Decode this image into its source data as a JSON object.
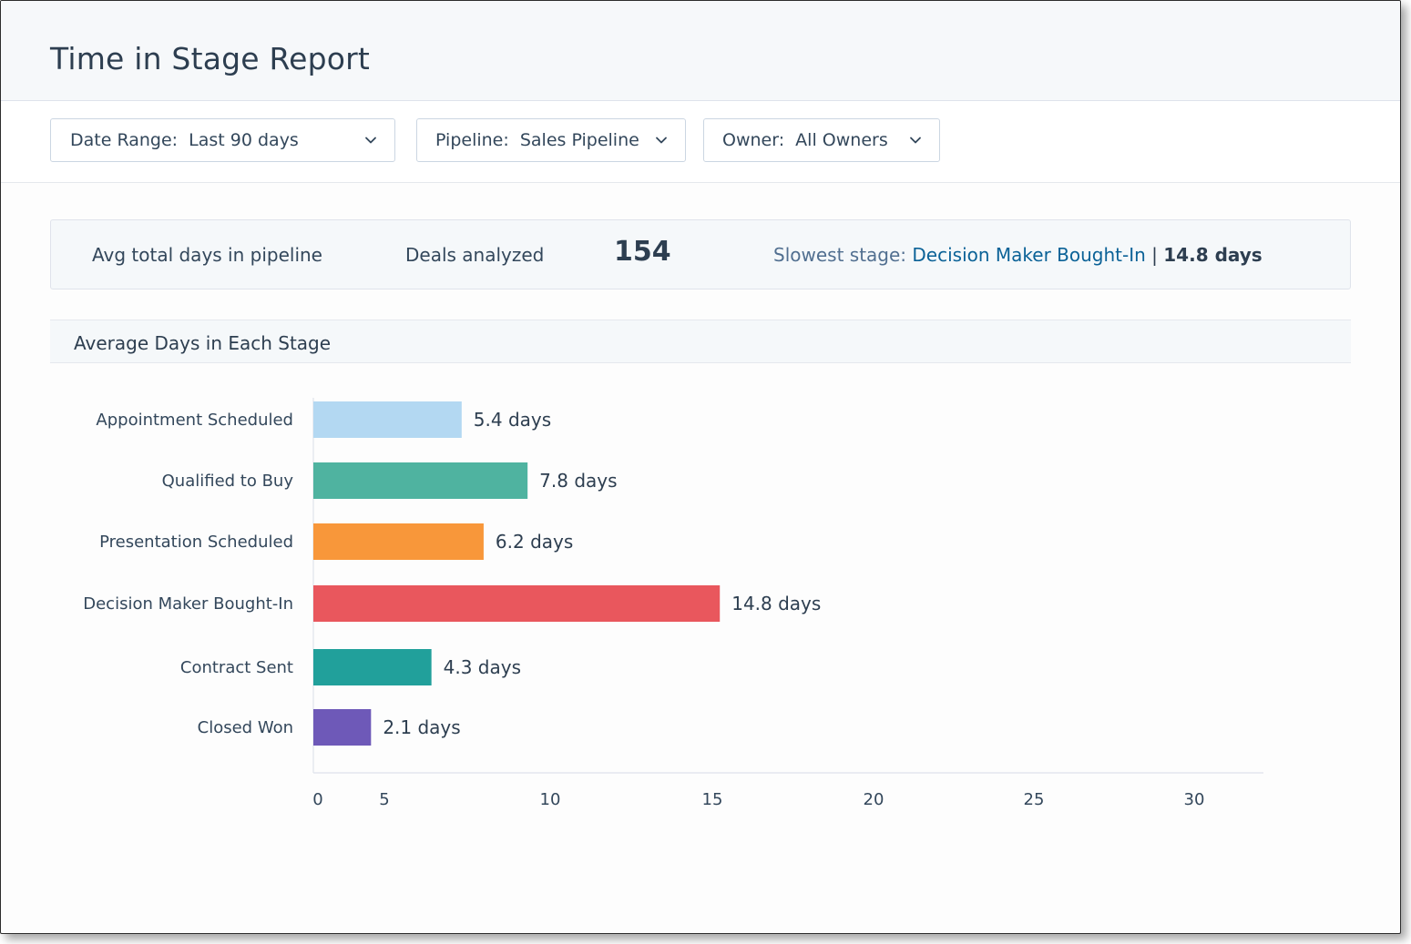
{
  "header": {
    "title": "Time in Stage Report"
  },
  "filters": [
    {
      "label": "Date Range:  Last 90 days",
      "icon": "chevron-down-icon"
    },
    {
      "label": "Pipeline:  Sales Pipeline",
      "icon": "chevron-down-icon"
    },
    {
      "label": "Owner:  All Owners",
      "icon": "chevron-down-icon"
    }
  ],
  "stats": {
    "avg_label": "Avg total days in pipeline",
    "deals_label": "Deals analyzed",
    "deals_value": "154",
    "slowest_label": "Slowest stage:",
    "slowest_stage": "Decision Maker Bought-In",
    "slowest_separator": "|",
    "slowest_days": "14.8 days"
  },
  "section": {
    "title": "Average Days in Each Stage"
  },
  "chart_data": {
    "type": "bar",
    "orientation": "horizontal",
    "title": "Average Days in Each Stage",
    "categories": [
      "Appointment Scheduled",
      "Qualified to Buy",
      "Presentation Scheduled",
      "Decision Maker Bought-In",
      "Contract Sent",
      "Closed Won"
    ],
    "values": [
      5.4,
      7.8,
      6.2,
      14.8,
      4.3,
      2.1
    ],
    "data_labels": [
      "5.4 days",
      "7.8 days",
      "6.2 days",
      "14.8 days",
      "4.3 days",
      "2.1 days"
    ],
    "colors": [
      "#b3d8f2",
      "#4fb3a0",
      "#f8973a",
      "#e9575d",
      "#21a09b",
      "#6e59b8"
    ],
    "x_ticks": [
      "0",
      "5",
      "10",
      "15",
      "20",
      "25",
      "30"
    ],
    "xlim": [
      0,
      30
    ],
    "grid": false,
    "legend": "none"
  }
}
